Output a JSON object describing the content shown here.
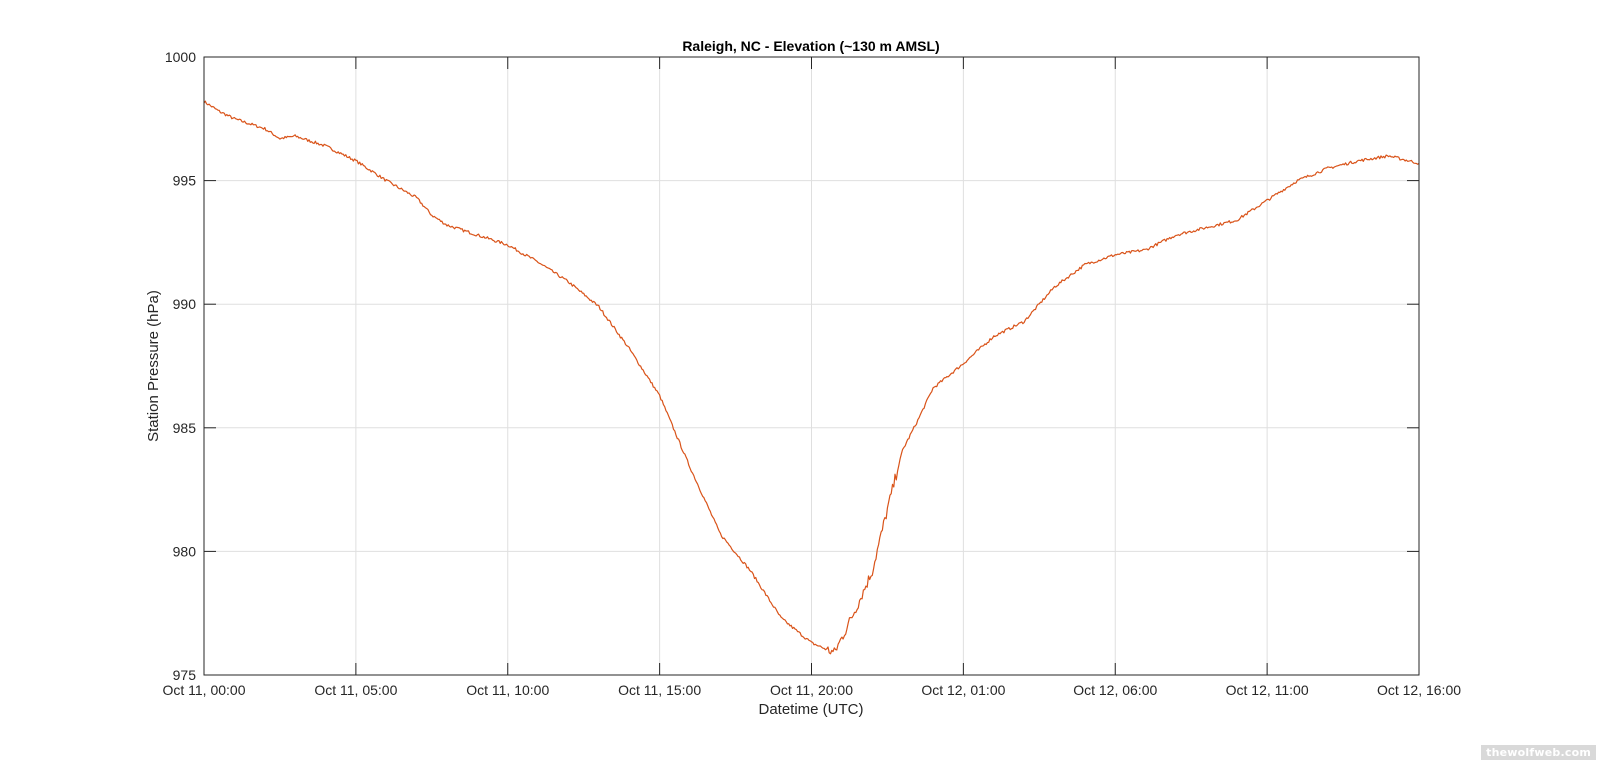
{
  "chart_data": {
    "type": "line",
    "title": "Raleigh, NC - Elevation (~130 m AMSL)",
    "xlabel": "Datetime (UTC)",
    "ylabel": "Station Pressure (hPa)",
    "xlim": [
      "Oct 11, 00:00",
      "Oct 12, 16:00"
    ],
    "ylim": [
      975,
      1000
    ],
    "xticks": [
      "Oct 11, 00:00",
      "Oct 11, 05:00",
      "Oct 11, 10:00",
      "Oct 11, 15:00",
      "Oct 11, 20:00",
      "Oct 12, 01:00",
      "Oct 12, 06:00",
      "Oct 12, 11:00",
      "Oct 12, 16:00"
    ],
    "yticks": [
      975,
      980,
      985,
      990,
      995,
      1000
    ],
    "grid": true,
    "legend": "none",
    "line_color": "#d95319",
    "series": [
      {
        "x": [
          "Oct 11, 00:00",
          "Oct 11, 00:30",
          "Oct 11, 01:00",
          "Oct 11, 02:00",
          "Oct 11, 02:30",
          "Oct 11, 03:00",
          "Oct 11, 04:00",
          "Oct 11, 05:00",
          "Oct 11, 05:30",
          "Oct 11, 06:00",
          "Oct 11, 07:00",
          "Oct 11, 07:30",
          "Oct 11, 08:00",
          "Oct 11, 09:00",
          "Oct 11, 10:00",
          "Oct 11, 11:00",
          "Oct 11, 12:00",
          "Oct 11, 13:00",
          "Oct 11, 14:00",
          "Oct 11, 15:00",
          "Oct 11, 16:00",
          "Oct 11, 17:00",
          "Oct 11, 18:00",
          "Oct 11, 19:00",
          "Oct 11, 20:00",
          "Oct 11, 20:45",
          "Oct 11, 21:00",
          "Oct 11, 21:30",
          "Oct 11, 22:00",
          "Oct 11, 22:30",
          "Oct 11, 23:00",
          "Oct 11, 23:30",
          "Oct 12, 00:00",
          "Oct 12, 01:00",
          "Oct 12, 02:00",
          "Oct 12, 03:00",
          "Oct 12, 04:00",
          "Oct 12, 05:00",
          "Oct 12, 06:00",
          "Oct 12, 07:00",
          "Oct 12, 08:00",
          "Oct 12, 09:00",
          "Oct 12, 10:00",
          "Oct 12, 11:00",
          "Oct 12, 12:00",
          "Oct 12, 13:00",
          "Oct 12, 14:00",
          "Oct 12, 15:00",
          "Oct 12, 16:00"
        ],
        "values": [
          998.2,
          997.8,
          997.5,
          997.1,
          996.7,
          996.8,
          996.4,
          995.8,
          995.4,
          995.0,
          994.3,
          993.6,
          993.2,
          992.8,
          992.4,
          991.7,
          990.9,
          989.9,
          988.2,
          986.3,
          983.4,
          980.7,
          979.2,
          977.3,
          976.3,
          975.9,
          976.5,
          977.8,
          979.2,
          981.7,
          984.1,
          985.3,
          986.6,
          987.6,
          988.7,
          989.3,
          990.7,
          991.6,
          992.0,
          992.2,
          992.8,
          993.1,
          993.4,
          994.2,
          995.0,
          995.5,
          995.8,
          996.0,
          995.7
        ]
      }
    ]
  },
  "watermark": "thewolfweb.com"
}
